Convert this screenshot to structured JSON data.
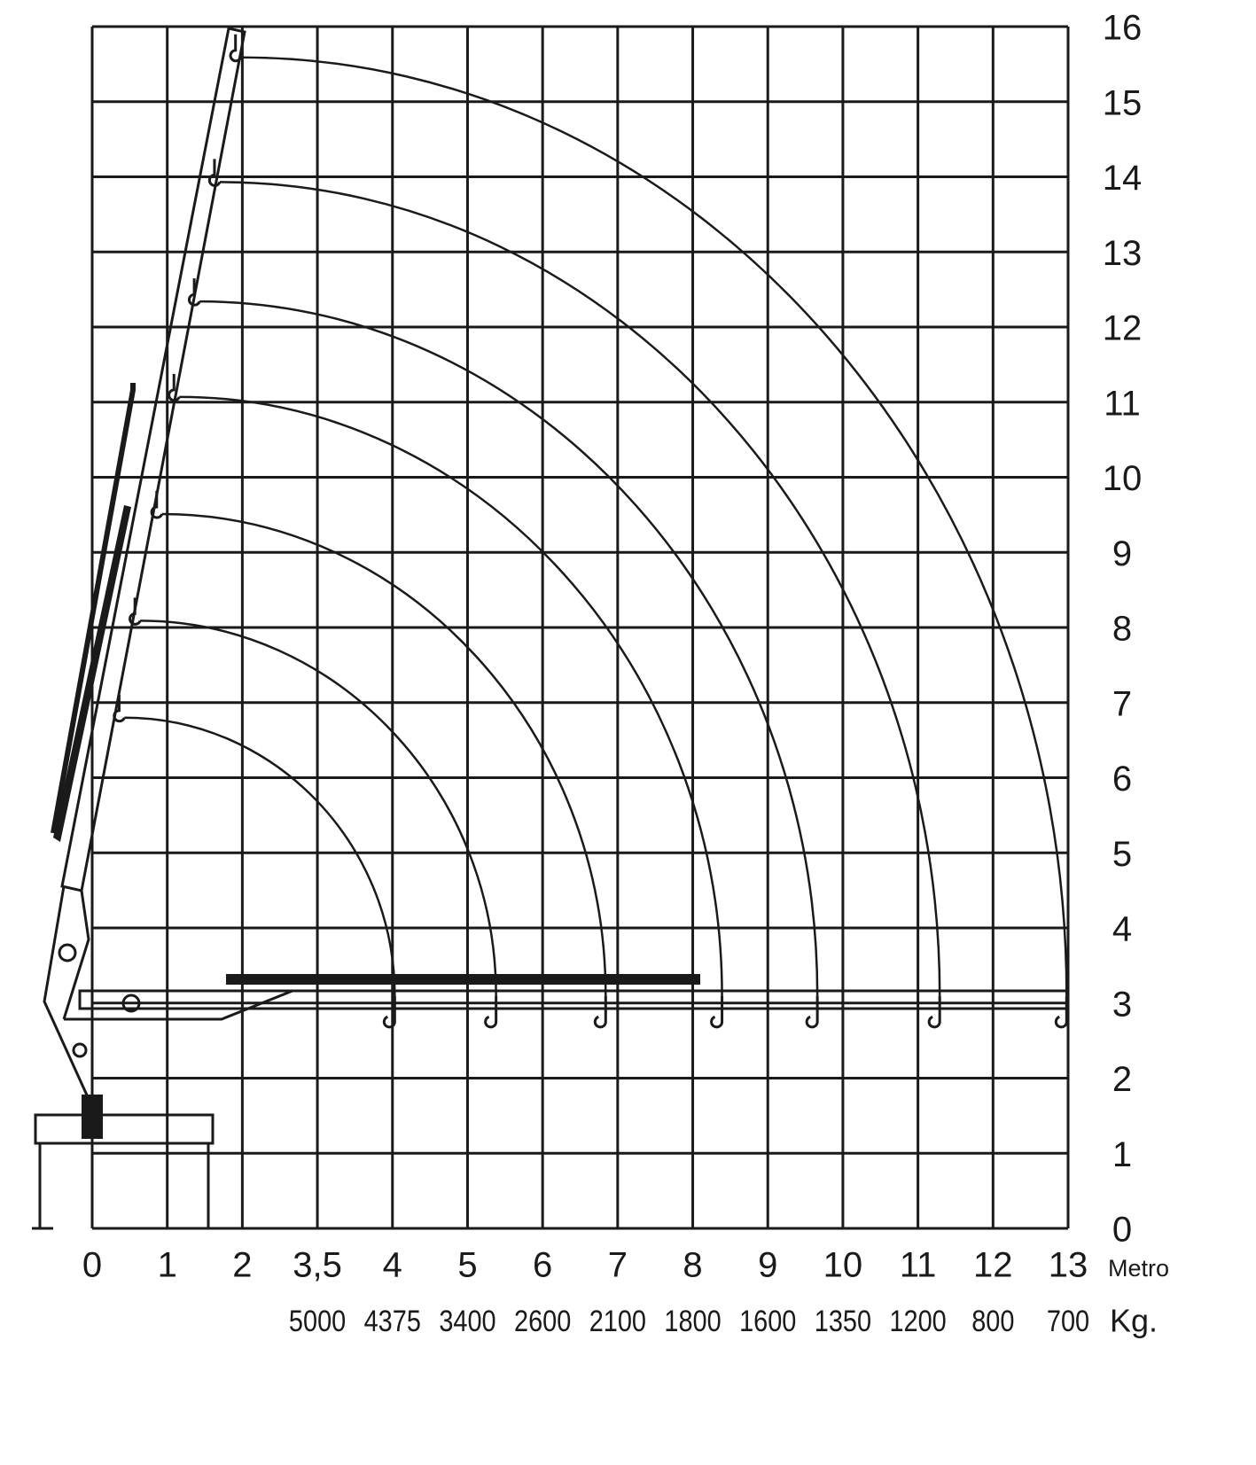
{
  "chart_data": {
    "type": "reach",
    "x_label": "Metro",
    "xlim": [
      0,
      13
    ],
    "ylim": [
      0,
      16
    ],
    "xticks": [
      0,
      1,
      2,
      {
        "value": 3,
        "label": "3,5"
      },
      4,
      5,
      6,
      7,
      8,
      9,
      10,
      11,
      12,
      13
    ],
    "yticks": [
      0,
      1,
      2,
      3,
      4,
      5,
      6,
      7,
      8,
      9,
      10,
      11,
      12,
      13,
      14,
      15,
      16
    ],
    "grid": true,
    "color": "#1a1a1a",
    "series": [
      {
        "x": [
          1.98,
          12.98
        ],
        "values": [
          15.59,
          3.1
        ]
      },
      {
        "x": [
          1.7,
          11.29
        ],
        "values": [
          13.93,
          3.1
        ]
      },
      {
        "x": [
          1.43,
          9.66
        ],
        "values": [
          12.34,
          3.1
        ]
      },
      {
        "x": [
          1.16,
          8.39
        ],
        "values": [
          11.07,
          3.1
        ]
      },
      {
        "x": [
          0.93,
          6.84
        ],
        "values": [
          9.51,
          3.1
        ]
      },
      {
        "x": [
          0.64,
          5.38
        ],
        "values": [
          8.09,
          3.1
        ]
      },
      {
        "x": [
          0.43,
          4.03
        ],
        "values": [
          6.8,
          3.1
        ]
      }
    ],
    "load_label": "Kg.",
    "loads": {
      "x": [
        3,
        4,
        5,
        6,
        7,
        8,
        9,
        10,
        11,
        12,
        13
      ],
      "values": [
        5000,
        4375,
        3400,
        2600,
        2100,
        1800,
        1600,
        1350,
        1200,
        800,
        700
      ]
    }
  }
}
